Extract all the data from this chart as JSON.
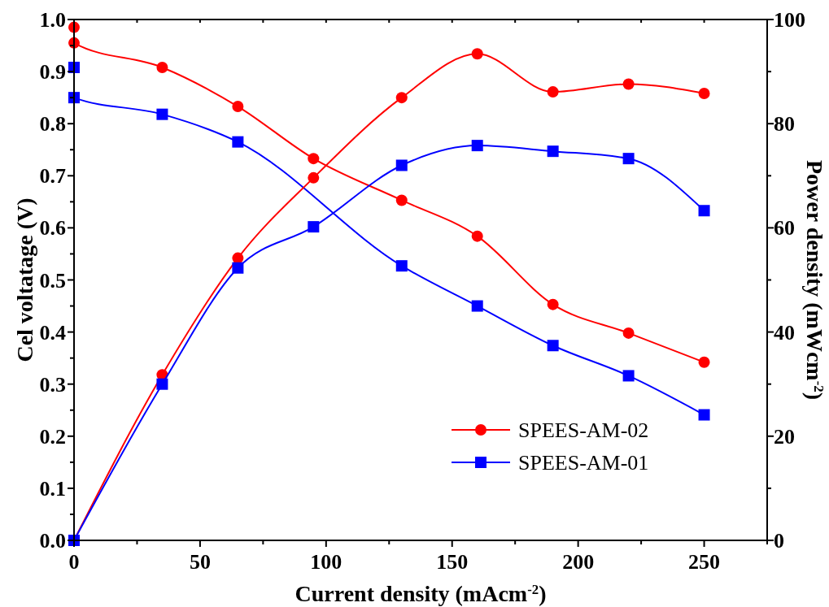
{
  "chart_data": {
    "type": "line",
    "xlabel": "Current density (mAcm$^{-2}$)",
    "ylabel": "Cel voltatage (V)",
    "y2label": "Power density (mWcm$^{-2}$)",
    "xlim": [
      0,
      275
    ],
    "xticks": [
      0,
      {
        "value": 25,
        "label": null
      },
      50,
      {
        "value": 75,
        "label": null
      },
      100,
      {
        "value": 125,
        "label": null
      },
      150,
      {
        "value": 175,
        "label": null
      },
      200,
      {
        "value": 225,
        "label": null
      },
      250,
      {
        "value": 275,
        "label": null
      }
    ],
    "ylim": [
      0,
      1
    ],
    "yticks": [
      {
        "value": 0,
        "label": "0.0"
      },
      {
        "value": 0.05,
        "label": null
      },
      {
        "value": 0.1,
        "label": "0.1"
      },
      {
        "value": 0.15,
        "label": null
      },
      {
        "value": 0.2,
        "label": "0.2"
      },
      {
        "value": 0.25,
        "label": null
      },
      {
        "value": 0.3,
        "label": "0.3"
      },
      {
        "value": 0.35,
        "label": null
      },
      {
        "value": 0.4,
        "label": "0.4"
      },
      {
        "value": 0.45,
        "label": null
      },
      {
        "value": 0.5,
        "label": "0.5"
      },
      {
        "value": 0.55,
        "label": null
      },
      {
        "value": 0.6,
        "label": "0.6"
      },
      {
        "value": 0.65,
        "label": null
      },
      {
        "value": 0.7,
        "label": "0.7"
      },
      {
        "value": 0.75,
        "label": null
      },
      {
        "value": 0.8,
        "label": "0.8"
      },
      {
        "value": 0.85,
        "label": null
      },
      {
        "value": 0.9,
        "label": "0.9"
      },
      {
        "value": 0.95,
        "label": null
      },
      {
        "value": 1,
        "label": "1.0"
      }
    ],
    "y2lim": [
      0,
      100
    ],
    "y2ticks": [
      0,
      {
        "value": 10,
        "label": null
      },
      20,
      {
        "value": 30,
        "label": null
      },
      40,
      {
        "value": 50,
        "label": null
      },
      60,
      {
        "value": 70,
        "label": null
      },
      80,
      {
        "value": 90,
        "label": null
      },
      100
    ],
    "legend": "bottom right",
    "grid": false,
    "series": [
      {
        "name": "SPEES-AM-02",
        "color": "#ff0000",
        "marker": "circle",
        "x": [
          0,
          0,
          35,
          65,
          95,
          130,
          160,
          190,
          220,
          250
        ],
        "values": [
          0.985,
          0.955,
          0.908,
          0.833,
          0.733,
          0.653,
          0.584,
          0.453,
          0.398,
          0.342
        ]
      },
      {
        "name": "SPEES-AM-01",
        "color": "#0000ff",
        "marker": "square",
        "x": [
          0,
          0,
          35,
          65,
          95,
          130,
          160,
          190,
          220,
          250
        ],
        "values": [
          0.908,
          0.85,
          0.818,
          0.765,
          null,
          0.527,
          0.45,
          0.374,
          0.316,
          0.241
        ]
      },
      {
        "color": "#ff0000",
        "marker": "circle",
        "axis": "y2",
        "x": [
          0,
          35,
          65,
          95,
          130,
          160,
          190,
          220,
          250
        ],
        "values": [
          0,
          31.8,
          54.2,
          69.6,
          85.0,
          93.4,
          86.1,
          87.6,
          85.8
        ]
      },
      {
        "color": "#0000ff",
        "marker": "square",
        "axis": "y2",
        "x": [
          0,
          35,
          65,
          95,
          130,
          160,
          190,
          220,
          250
        ],
        "values": [
          0,
          30.0,
          52.3,
          60.2,
          72.0,
          75.8,
          74.7,
          73.3,
          63.3
        ]
      }
    ]
  }
}
